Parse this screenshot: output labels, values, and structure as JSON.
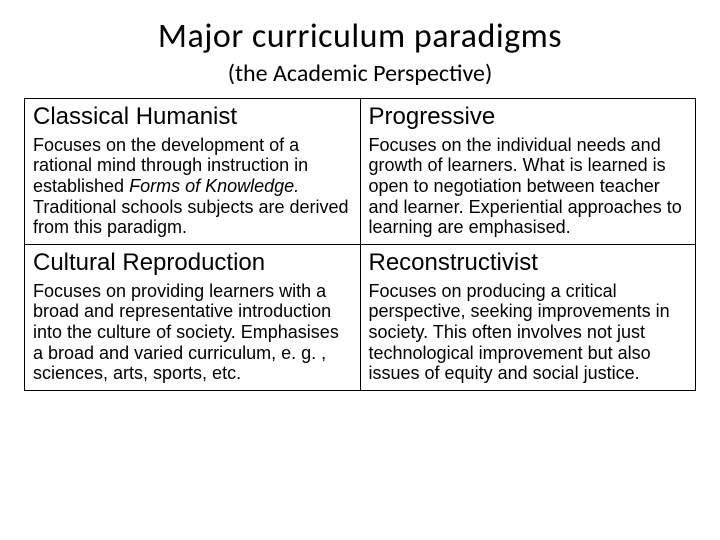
{
  "header": {
    "title": "Major curriculum paradigms",
    "subtitle": "(the Academic Perspective)"
  },
  "table": {
    "columns": 2,
    "rows": 2,
    "border_color": "#000000",
    "background_color": "#ffffff",
    "cells": [
      {
        "heading": "Classical Humanist",
        "body_pre": "Focuses on the development of a rational mind through instruction in established ",
        "body_italic": "Forms of Knowledge.",
        "body_post": " Traditional schools subjects are derived from this paradigm."
      },
      {
        "heading": "Progressive",
        "body_pre": "Focuses on the individual needs and growth of learners. What is learned is open to negotiation between teacher and learner. Experiential approaches to learning are emphasised.",
        "body_italic": "",
        "body_post": ""
      },
      {
        "heading": "Cultural Reproduction",
        "body_pre": "Focuses on providing learners with a broad and representative introduction into the culture of society. Emphasises a broad and varied curriculum, e. g. , sciences, arts, sports, etc.",
        "body_italic": "",
        "body_post": ""
      },
      {
        "heading": "Reconstructivist",
        "body_pre": "Focuses on producing a critical perspective, seeking improvements in society. This often involves not just technological improvement but also issues of equity and social justice.",
        "body_italic": "",
        "body_post": ""
      }
    ]
  },
  "style": {
    "title_fontsize": 34,
    "subtitle_fontsize": 24,
    "heading_fontsize": 24,
    "body_fontsize": 18,
    "text_color": "#000000",
    "background_color": "#ffffff",
    "title_font": "Calibri",
    "table_font": "Arial"
  }
}
